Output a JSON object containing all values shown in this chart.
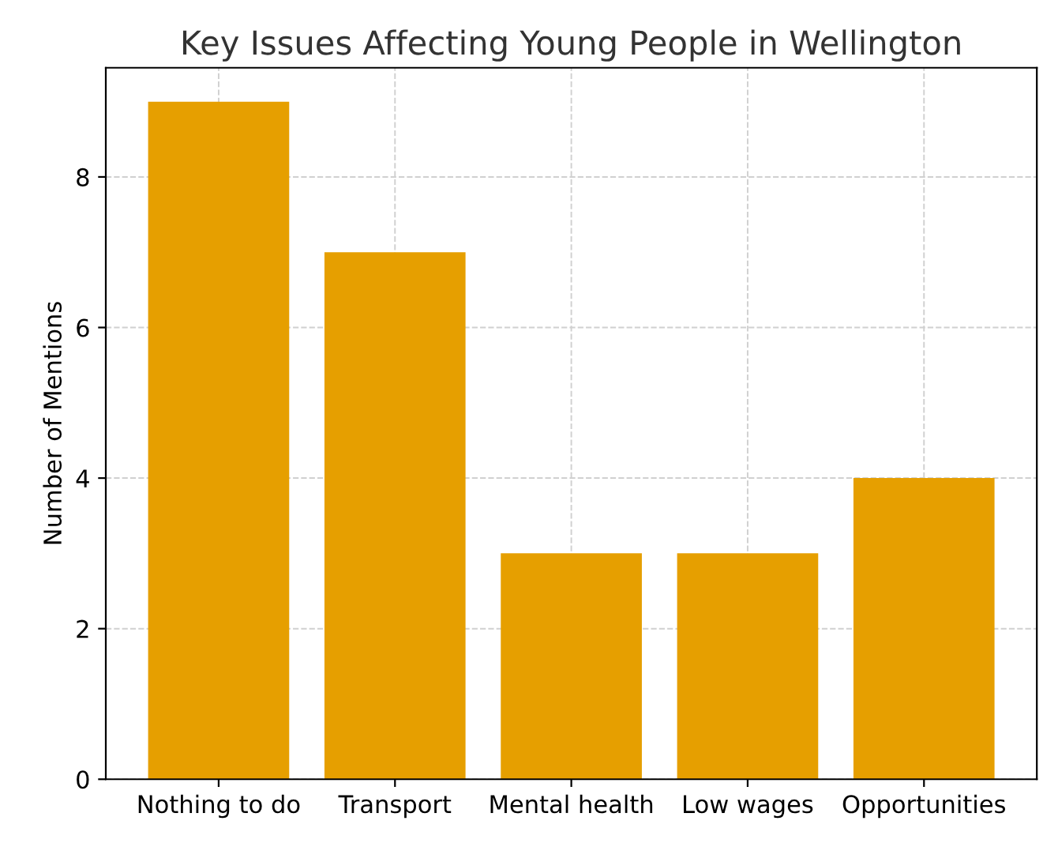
{
  "chart_data": {
    "type": "bar",
    "title": "Key Issues Affecting Young People in Wellington",
    "ylabel": "Number of Mentions",
    "categories": [
      "Nothing to do",
      "Transport",
      "Mental health",
      "Low wages",
      "Opportunities"
    ],
    "values": [
      9,
      7,
      3,
      3,
      4
    ],
    "color": "#e69f00",
    "ylim": [
      0,
      9.45
    ],
    "yticks": [
      0,
      2,
      4,
      6,
      8
    ],
    "grid": true
  }
}
